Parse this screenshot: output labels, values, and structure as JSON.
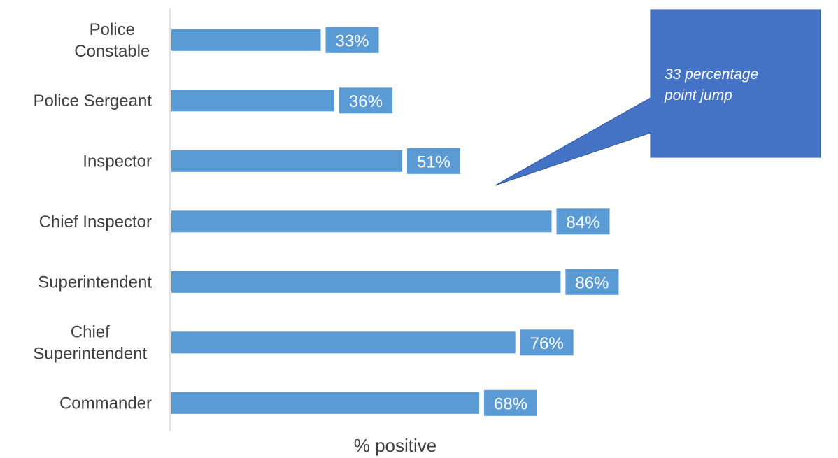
{
  "chart_data": {
    "type": "bar",
    "orientation": "horizontal",
    "categories": [
      [
        "Police",
        "Constable"
      ],
      [
        "Police Sergeant"
      ],
      [
        "Inspector"
      ],
      [
        "Chief Inspector"
      ],
      [
        "Superintendent"
      ],
      [
        "Chief",
        "Superintendent"
      ],
      [
        "Commander"
      ]
    ],
    "values": [
      33,
      36,
      51,
      84,
      86,
      76,
      68
    ],
    "data_labels": [
      "33%",
      "36%",
      "51%",
      "84%",
      "86%",
      "76%",
      "68%"
    ],
    "xlabel": "% positive",
    "ylabel": "",
    "title": "",
    "xlim": [
      0,
      100
    ],
    "grid": false,
    "legend": "none",
    "annotation": {
      "lines": [
        "33 percentage",
        "point jump"
      ]
    }
  },
  "colors": {
    "bar": "#5b9bd5",
    "callout": "#4472c4",
    "callout_border": "#2f5597",
    "axis": "#d9d9d9",
    "text": "#404040"
  }
}
